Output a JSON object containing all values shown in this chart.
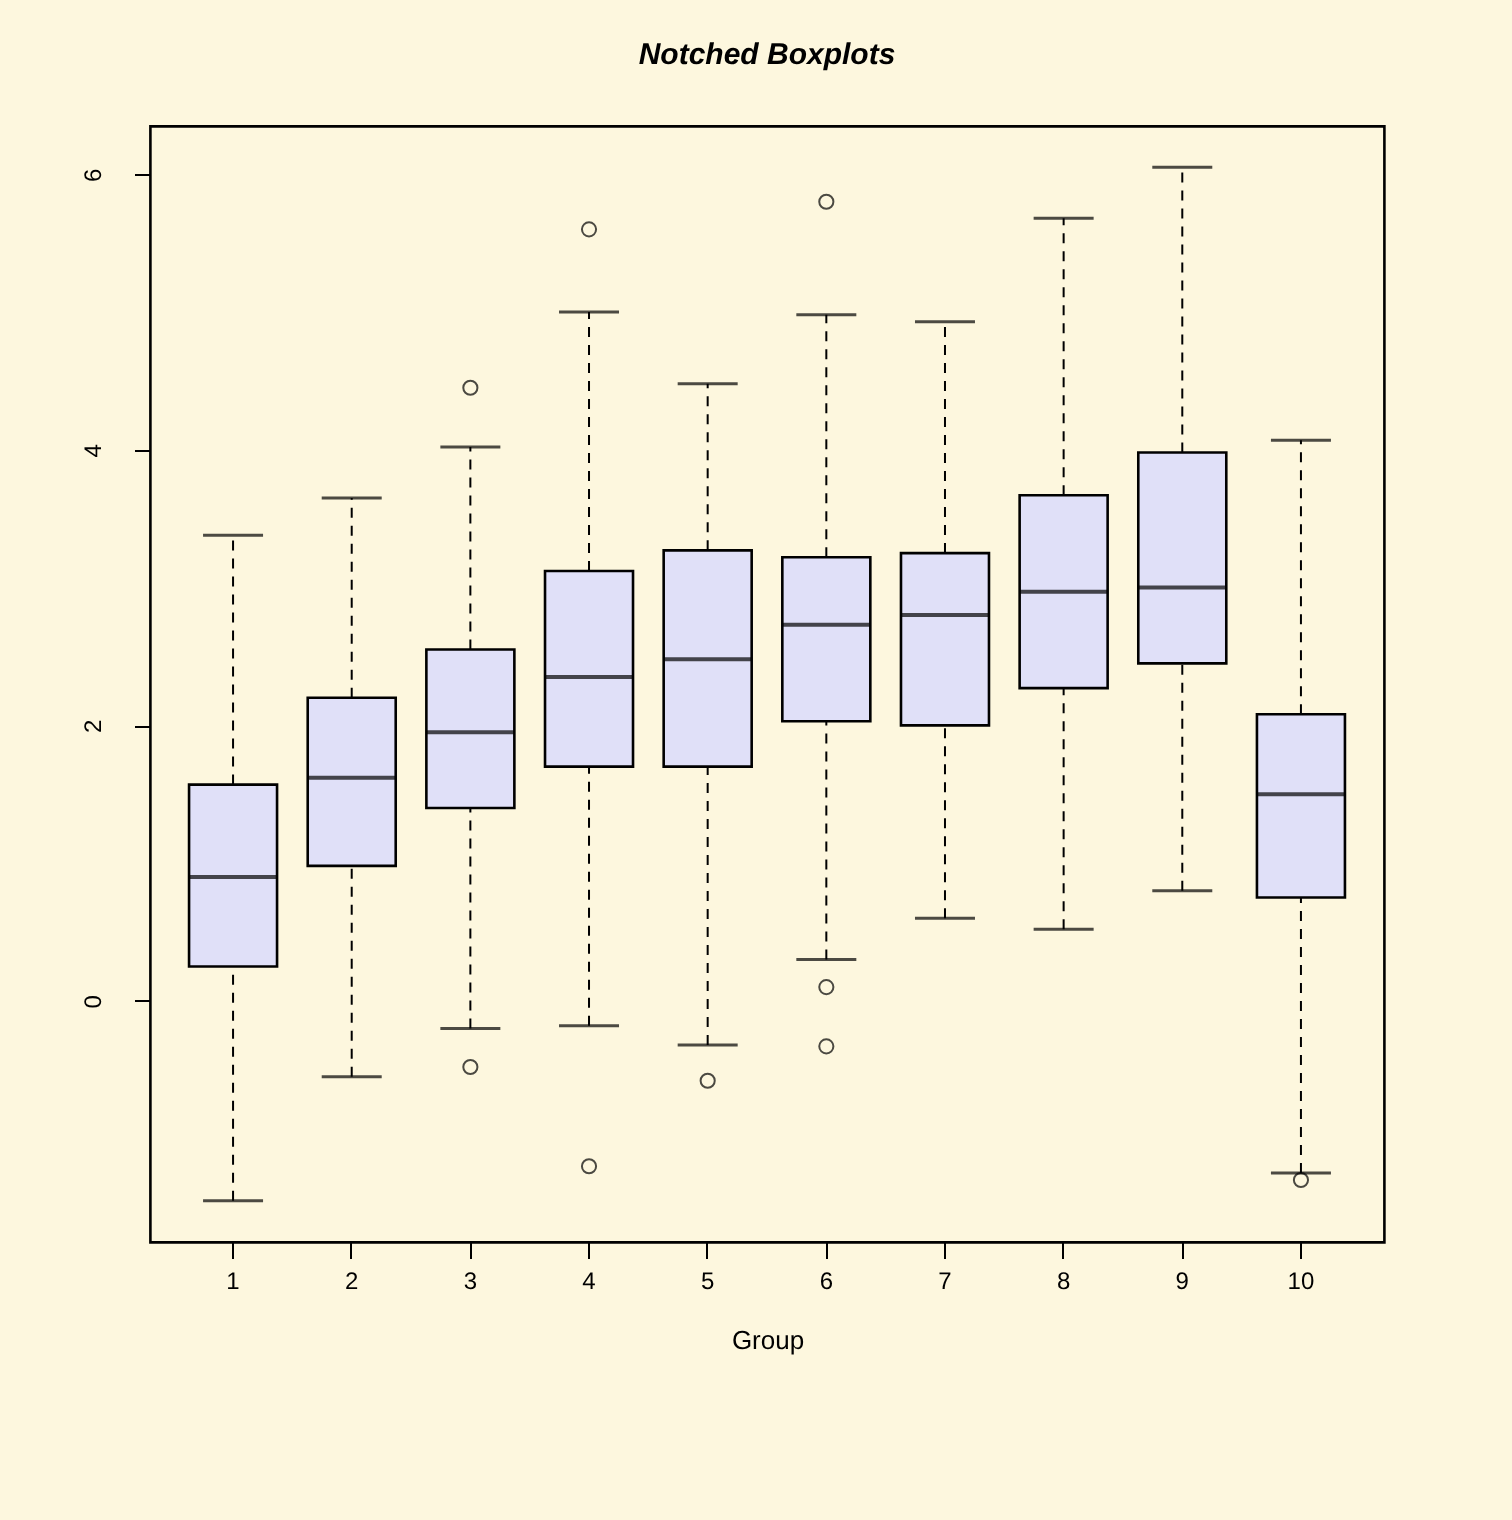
{
  "chart_data": {
    "type": "box",
    "title": "Notched Boxplots",
    "xlabel": "Group",
    "categories": [
      "1",
      "2",
      "3",
      "4",
      "5",
      "6",
      "7",
      "8",
      "9",
      "10"
    ],
    "boxes": [
      {
        "low": -1.45,
        "q1": 0.25,
        "median": 0.9,
        "q3": 1.57,
        "high": 3.38
      },
      {
        "low": -0.55,
        "q1": 0.98,
        "median": 1.62,
        "q3": 2.2,
        "high": 3.65
      },
      {
        "low": -0.2,
        "q1": 1.4,
        "median": 1.95,
        "q3": 2.55,
        "high": 4.02,
        "outliers": [
          4.45,
          -0.48
        ]
      },
      {
        "low": -0.18,
        "q1": 1.7,
        "median": 2.35,
        "q3": 3.12,
        "high": 5.0,
        "outliers": [
          5.6,
          -1.2
        ]
      },
      {
        "low": -0.32,
        "q1": 1.7,
        "median": 2.48,
        "q3": 3.27,
        "high": 4.48,
        "outliers": [
          -0.58
        ]
      },
      {
        "low": 0.3,
        "q1": 2.03,
        "median": 2.73,
        "q3": 3.22,
        "high": 4.98,
        "outliers": [
          5.8,
          0.1,
          -0.33
        ]
      },
      {
        "low": 0.6,
        "q1": 2.0,
        "median": 2.8,
        "q3": 3.25,
        "high": 4.93
      },
      {
        "low": 0.52,
        "q1": 2.27,
        "median": 2.97,
        "q3": 3.67,
        "high": 5.68
      },
      {
        "low": 0.8,
        "q1": 2.45,
        "median": 3.0,
        "q3": 3.98,
        "high": 6.05
      },
      {
        "low": -1.25,
        "q1": 0.75,
        "median": 1.5,
        "q3": 2.08,
        "high": 4.07,
        "outliers": [
          -1.3
        ]
      }
    ],
    "color": "#e0e0f8",
    "ylim": [
      -1.75,
      6.35
    ],
    "yticks": [
      0,
      2,
      4,
      6
    ],
    "grid": false
  }
}
